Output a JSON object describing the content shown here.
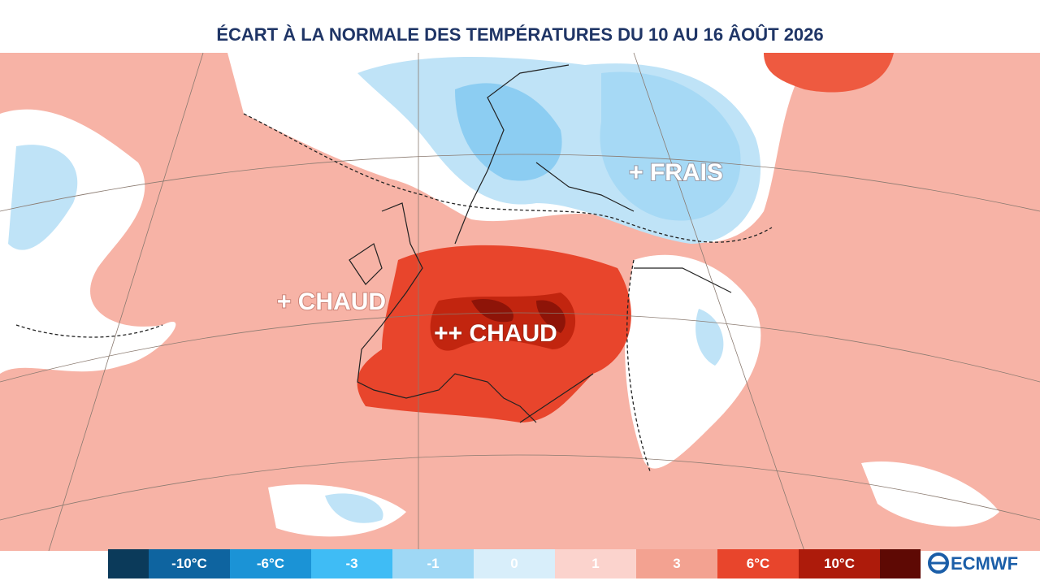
{
  "title": "ÉCART À LA NORMALE DES TEMPÉRATURES DU 10 AU 16 ÂOÛT 2026",
  "map_labels": [
    "+ FRAIS",
    "+ CHAUD",
    "++ CHAUD"
  ],
  "legend": {
    "colors": [
      "#0b3a5a",
      "#0e64a0",
      "#1b93d6",
      "#3fbcf5",
      "#9fd8f5",
      "#d8eefa",
      "#fbd3cd",
      "#f3a291",
      "#e8452c",
      "#ad1b0b",
      "#5e0904"
    ],
    "labels": [
      "-10°C",
      "-6°C",
      "-3",
      "-1",
      "0",
      "1",
      "3",
      "6°C",
      "10°C"
    ]
  },
  "logo": "ECMWF"
}
